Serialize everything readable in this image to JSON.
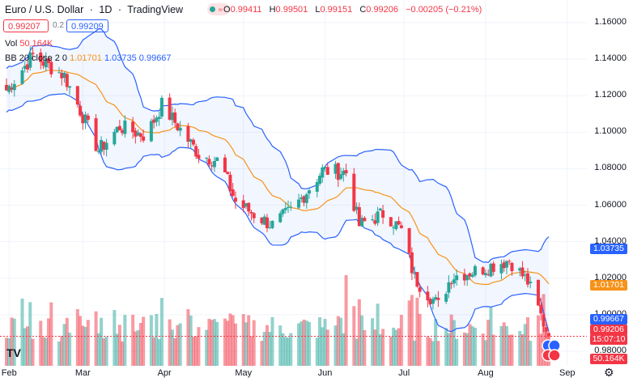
{
  "header": {
    "symbol": "Euro / U.S. Dollar",
    "interval": "1D",
    "source": "TradingView",
    "ohlc": {
      "o_label": "O",
      "o": "0.99411",
      "h_label": "H",
      "h": "0.99501",
      "l_label": "L",
      "l": "0.99151",
      "c_label": "C",
      "c": "0.99206",
      "change": "−0.00205 (−0.21%)"
    }
  },
  "trade": {
    "sell": "0.99207",
    "spread": "0.2",
    "buy": "0.99209"
  },
  "indicators": {
    "vol_label": "Vol",
    "vol_value": "50.164K",
    "bb_label": "BB 20 close 2 0",
    "bb_mid": "1.01701",
    "bb_upper": "1.03735",
    "bb_lower": "0.99667"
  },
  "y_axis": [
    "1.16000",
    "1.14000",
    "1.12000",
    "1.10000",
    "1.08000",
    "1.06000",
    "1.04000",
    "1.02000",
    "1.00000",
    "0.98000"
  ],
  "x_axis": [
    "Feb",
    "Mar",
    "Apr",
    "May",
    "Jun",
    "Jul",
    "Aug",
    "Sep"
  ],
  "price_tags": {
    "upper": "1.03735",
    "mid": "1.01701",
    "lower": "0.99667",
    "last": "0.99206",
    "countdown": "15:07:10",
    "volume": "50.164K"
  },
  "colors": {
    "up": "#26a69a",
    "down": "#f23645",
    "upper_band": "#2962ff",
    "mid_band": "#f7931a"
  },
  "chart_data": {
    "type": "candlestick",
    "ylim": [
      0.972,
      1.168
    ],
    "anchors": [
      [
        "Jan-31",
        1.123
      ],
      [
        "Feb-10",
        1.142
      ],
      [
        "Feb-22",
        1.131
      ],
      [
        "Mar-07",
        1.09
      ],
      [
        "Mar-15",
        1.103
      ],
      [
        "Mar-25",
        1.098
      ],
      [
        "Mar-31",
        1.115
      ],
      [
        "Apr-14",
        1.088
      ],
      [
        "Apr-22",
        1.084
      ],
      [
        "Apr-28",
        1.062
      ],
      [
        "May-05",
        1.055
      ],
      [
        "May-12",
        1.049
      ],
      [
        "May-20",
        1.058
      ],
      [
        "May-31",
        1.079
      ],
      [
        "Jun-09",
        1.078
      ],
      [
        "Jun-14",
        1.049
      ],
      [
        "Jun-24",
        1.056
      ],
      [
        "Jun-30",
        1.046
      ],
      [
        "Jul-05",
        1.02
      ],
      [
        "Jul-14",
        1.005
      ],
      [
        "Jul-19",
        1.021
      ],
      [
        "Jul-28",
        1.024
      ],
      [
        "Aug-10",
        1.03
      ],
      [
        "Aug-17",
        1.018
      ],
      [
        "Aug-24",
        0.992
      ]
    ]
  }
}
